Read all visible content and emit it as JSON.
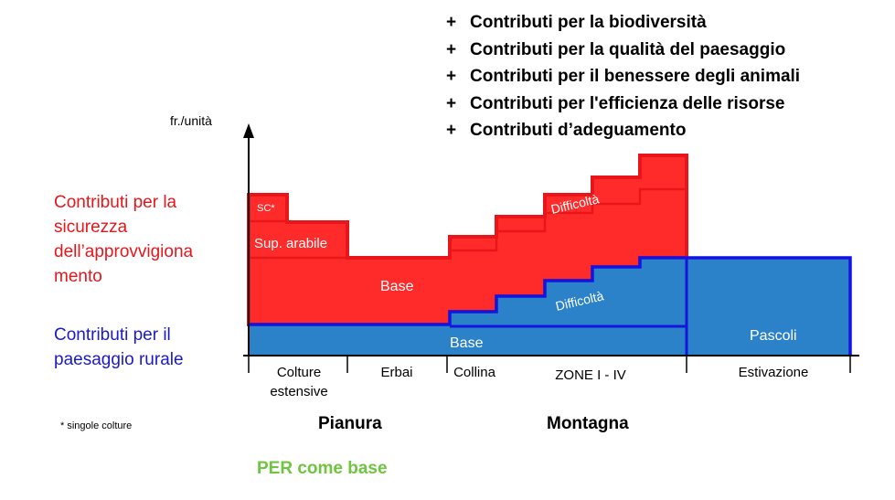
{
  "top_list": [
    {
      "prefix": "+",
      "text": "Contributi per la biodiversità"
    },
    {
      "prefix": "+",
      "text": "Contributi per la qualità del paesaggio"
    },
    {
      "prefix": "+",
      "text": "Contributi per il benessere degli animali"
    },
    {
      "prefix": "+",
      "text": "Contributi per l'efficienza delle risorse"
    },
    {
      "prefix": "+",
      "text": "Contributi d’adeguamento"
    }
  ],
  "y_axis_label": "fr./unità",
  "left_labels": {
    "security": "Contributi per la sicurezza dell’approvvigiona mento",
    "rural": "Contributi per il paesaggio rurale"
  },
  "footnote": "* singole colture",
  "region_labels": {
    "plain": "Pianura",
    "mountain": "Montagna"
  },
  "per_label": "PER come base",
  "chart_labels": {
    "sc": "SC*",
    "arable": "Sup. arabile",
    "base_red": "Base",
    "difficulty_red": "Difficoltà",
    "difficulty_blue": "Difficoltà",
    "base_blue": "Base",
    "pastures": "Pascoli"
  },
  "x_categories": [
    {
      "id": "colture",
      "lines": [
        "Colture",
        "estensive"
      ]
    },
    {
      "id": "erbai",
      "lines": [
        "Erbai"
      ]
    },
    {
      "id": "collina",
      "lines": [
        "Collina"
      ]
    },
    {
      "id": "zone",
      "lines": [
        "ZONE I - IV"
      ]
    },
    {
      "id": "estivazione",
      "lines": [
        "Estivazione"
      ]
    }
  ],
  "colors": {
    "red": "#ff2b2b",
    "red_edge": "#e8161b",
    "blue": "#2b82c9",
    "blue_edge": "#1414e0",
    "green": "#6fc440"
  }
}
